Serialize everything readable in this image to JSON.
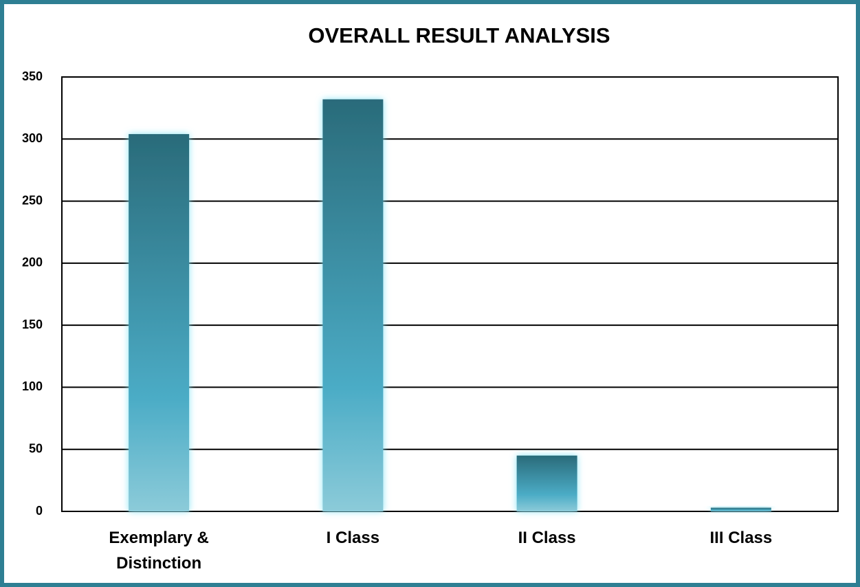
{
  "chart_data": {
    "type": "bar",
    "title": "OVERALL RESULT ANALYSIS",
    "categories": [
      "Exemplary & Distinction",
      "I Class",
      "II Class",
      "III Class"
    ],
    "values": [
      304,
      332,
      45,
      3
    ],
    "color": "#4bacc6",
    "ylim": [
      0,
      350
    ],
    "yticks": [
      0,
      50,
      100,
      150,
      200,
      250,
      300,
      350
    ],
    "grid": true
  }
}
